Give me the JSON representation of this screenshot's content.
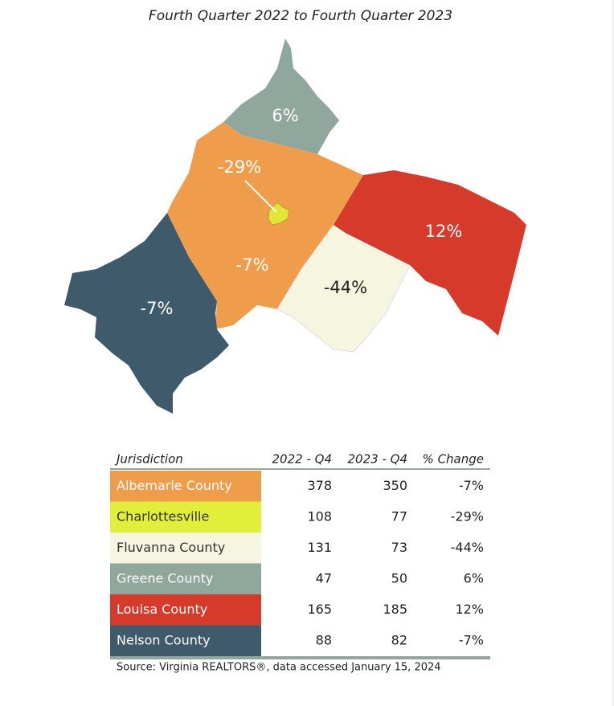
{
  "title": "Fourth Quarter 2022 to Fourth Quarter 2023",
  "map_labels": [
    "6%",
    "-29%",
    "-7%",
    "-7%",
    "-44%",
    "12%"
  ],
  "table": {
    "header": [
      "Jurisdiction",
      "2022 - Q4",
      "2023 - Q4",
      "% Change"
    ],
    "rows": [
      [
        "Albemarle County",
        "378",
        "350",
        "-7%"
      ],
      [
        "Charlottesville",
        "108",
        "77",
        "-29%"
      ],
      [
        "Fluvanna County",
        "131",
        "73",
        "-44%"
      ],
      [
        "Greene County",
        "47",
        "50",
        "6%"
      ],
      [
        "Louisa County",
        "165",
        "185",
        "12%"
      ],
      [
        "Nelson County",
        "88",
        "82",
        "-7%"
      ]
    ]
  },
  "source": "Source: Virginia REALTORS®, data accessed January 15, 2024"
}
